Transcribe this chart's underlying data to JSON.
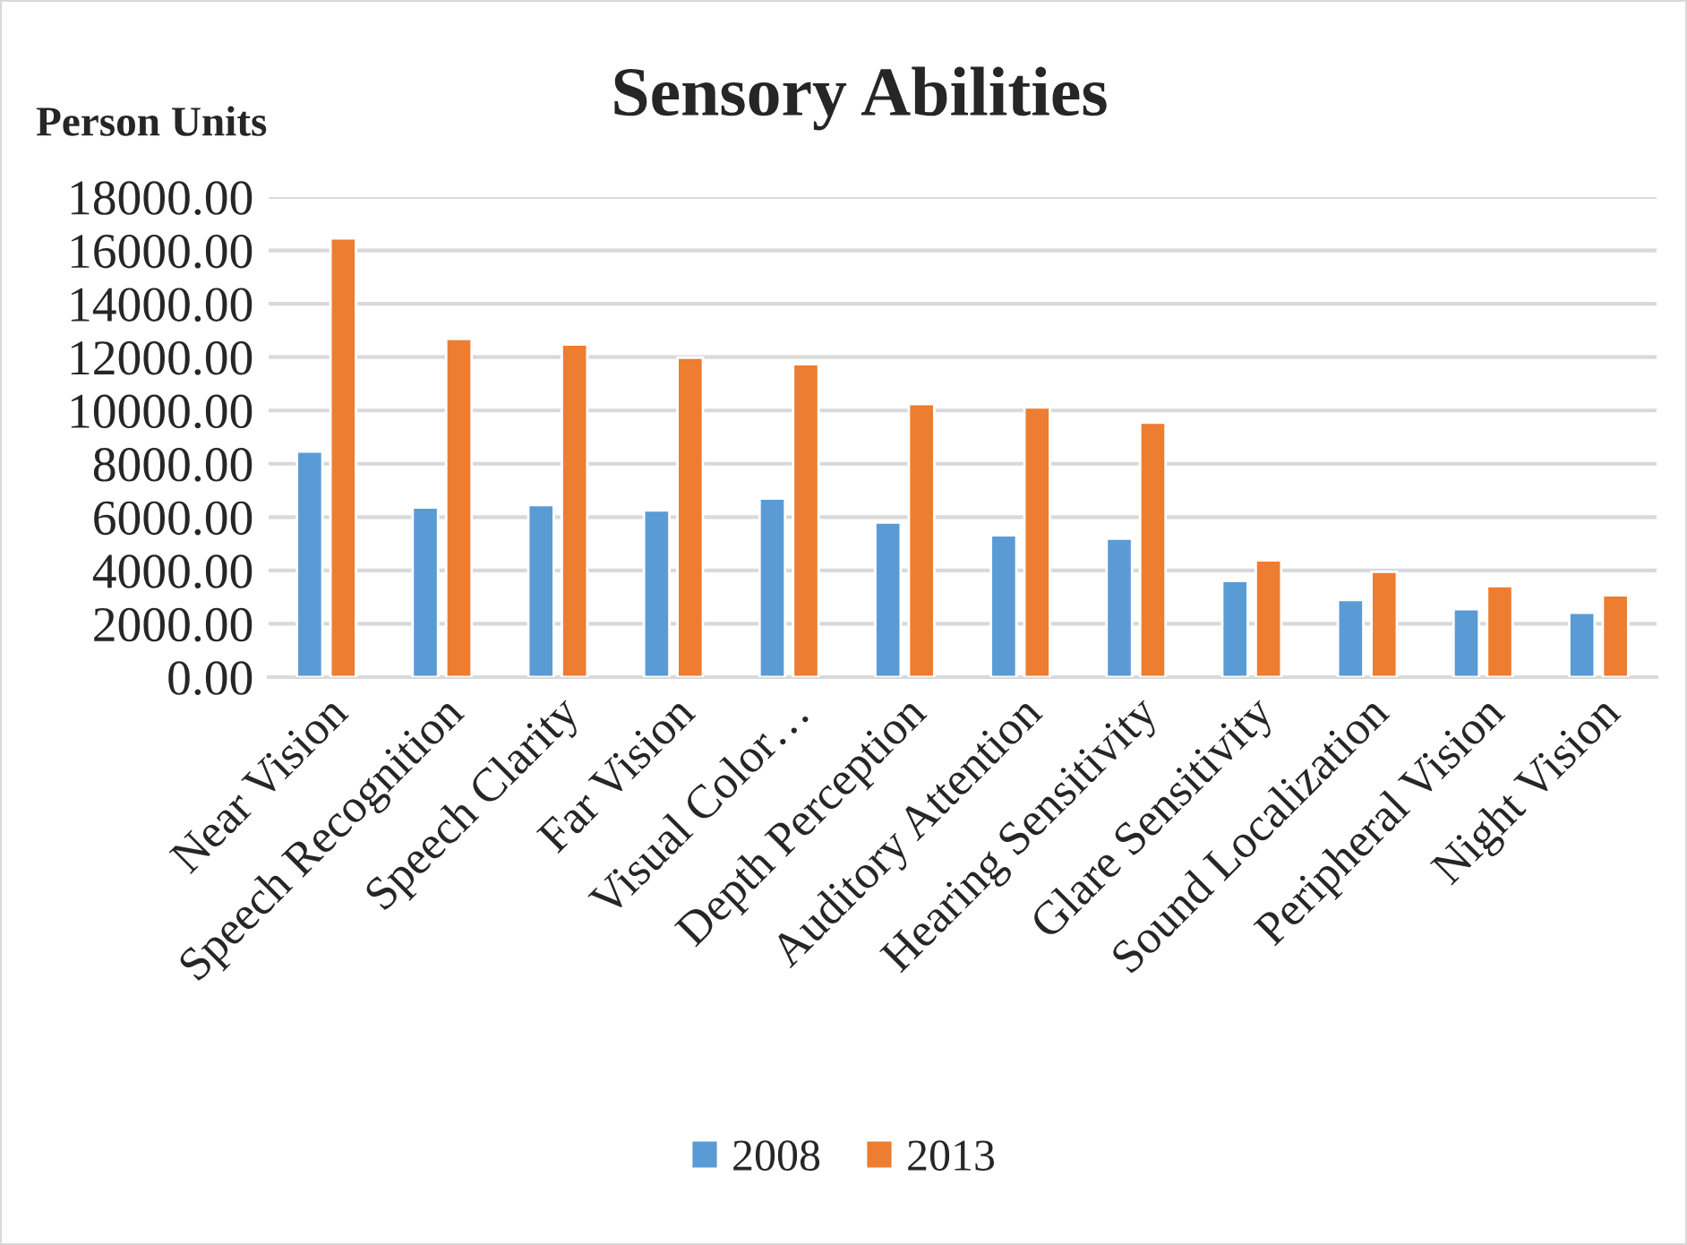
{
  "chart_data": {
    "type": "bar",
    "title": "Sensory Abilities",
    "ylabel": "Person Units",
    "categories": [
      "Near Vision",
      "Speech Recognition",
      "Speech Clarity",
      "Far Vision",
      "Visual Color…",
      "Depth Perception",
      "Auditory Attention",
      "Hearing Sensitivity",
      "Glare Sensitivity",
      "Sound Localization",
      "Peripheral Vision",
      "Night Vision"
    ],
    "series": [
      {
        "name": "2008",
        "color": "#5b9bd5",
        "values": [
          8460,
          6360,
          6450,
          6250,
          6700,
          5800,
          5320,
          5190,
          3610,
          2890,
          2550,
          2410
        ]
      },
      {
        "name": "2013",
        "color": "#ed7d31",
        "values": [
          16450,
          12680,
          12470,
          11980,
          11730,
          10240,
          10110,
          9540,
          4380,
          3950,
          3410,
          3070
        ]
      }
    ],
    "ylim": [
      0,
      18000
    ],
    "yticks": [
      {
        "value": 0,
        "label": "0.00"
      },
      {
        "value": 2000,
        "label": "2000.00"
      },
      {
        "value": 4000,
        "label": "4000.00"
      },
      {
        "value": 6000,
        "label": "6000.00"
      },
      {
        "value": 8000,
        "label": "8000.00"
      },
      {
        "value": 10000,
        "label": "10000.00"
      },
      {
        "value": 12000,
        "label": "12000.00"
      },
      {
        "value": 14000,
        "label": "14000.00"
      },
      {
        "value": 16000,
        "label": "16000.00"
      },
      {
        "value": 18000,
        "label": "18000.00"
      }
    ],
    "grid": "y",
    "legend": "bottom"
  }
}
